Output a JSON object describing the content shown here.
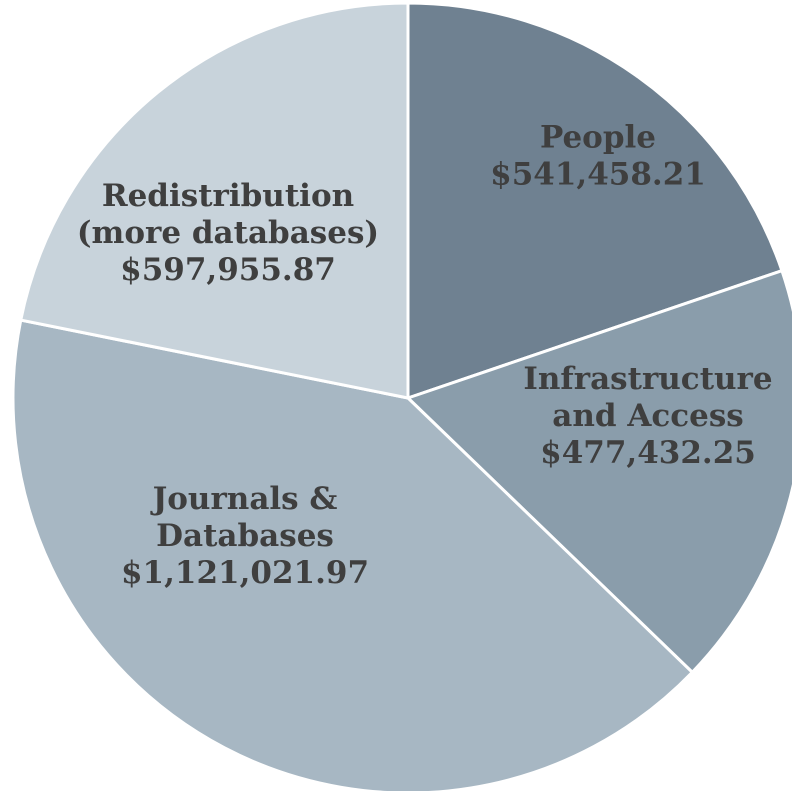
{
  "chart_data": {
    "type": "pie",
    "start": "12 o'clock",
    "direction": "clockwise",
    "slices": [
      {
        "lines": [
          "People",
          "$541,458.21"
        ],
        "value": 541458.21,
        "color": "#6f8191"
      },
      {
        "lines": [
          "Infrastructure",
          "and Access",
          "$477,432.25"
        ],
        "value": 477432.25,
        "color": "#8a9dab"
      },
      {
        "lines": [
          "Journals &",
          "Databases",
          "$1,121,021.97"
        ],
        "value": 1121021.97,
        "color": "#a7b7c3"
      },
      {
        "lines": [
          "Redistribution",
          "(more databases)",
          "$597,955.87"
        ],
        "value": 597955.87,
        "color": "#c8d3db"
      }
    ]
  }
}
